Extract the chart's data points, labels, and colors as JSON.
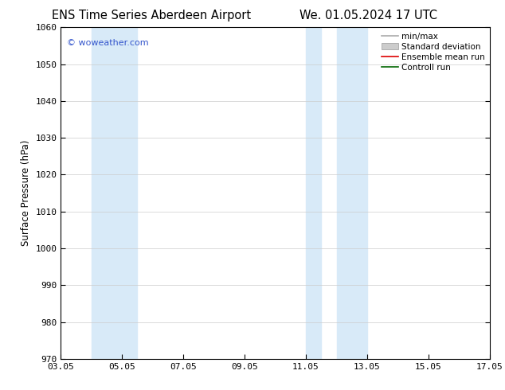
{
  "title_left": "ENS Time Series Aberdeen Airport",
  "title_right": "We. 01.05.2024 17 UTC",
  "ylabel": "Surface Pressure (hPa)",
  "ylim": [
    970,
    1060
  ],
  "yticks": [
    970,
    980,
    990,
    1000,
    1010,
    1020,
    1030,
    1040,
    1050,
    1060
  ],
  "xtick_labels": [
    "03.05",
    "05.05",
    "07.05",
    "09.05",
    "11.05",
    "13.05",
    "15.05",
    "17.05"
  ],
  "xtick_positions": [
    3,
    5,
    7,
    9,
    11,
    13,
    15,
    17
  ],
  "xlim": [
    3,
    17
  ],
  "shaded_bands": [
    {
      "x_start": 4.0,
      "x_end": 5.5,
      "color": "#d8eaf8"
    },
    {
      "x_start": 11.0,
      "x_end": 11.5,
      "color": "#d8eaf8"
    },
    {
      "x_start": 12.0,
      "x_end": 13.0,
      "color": "#d8eaf8"
    }
  ],
  "watermark": "© woweather.com",
  "watermark_color": "#3355cc",
  "legend_items": [
    {
      "label": "min/max",
      "type": "line",
      "color": "#aaaaaa",
      "lw": 1.2
    },
    {
      "label": "Standard deviation",
      "type": "patch",
      "color": "#cccccc"
    },
    {
      "label": "Ensemble mean run",
      "type": "line",
      "color": "#dd0000",
      "lw": 1.2
    },
    {
      "label": "Controll run",
      "type": "line",
      "color": "#006600",
      "lw": 1.2
    }
  ],
  "bg_color": "#ffffff",
  "grid_color": "#cccccc",
  "title_fontsize": 10.5,
  "axis_label_fontsize": 8.5,
  "tick_fontsize": 8,
  "legend_fontsize": 7.5
}
